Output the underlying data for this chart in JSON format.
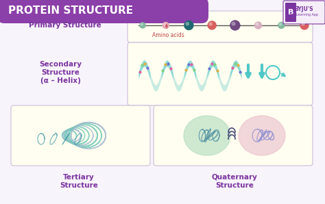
{
  "title": "PROTEIN STRUCTURE",
  "bg_color": "#f8f4fb",
  "header_bg": "#8b3fa8",
  "header_text_color": "#ffffff",
  "box_fill": "#fffef0",
  "box_edge": "#d4c8e0",
  "label_color": "#7b35a0",
  "primary_label": "Primary Structure",
  "primary_sublabel": "Amino acids",
  "secondary_label": "Secondary\nStructure\n(α – Helix)",
  "tertiary_label": "Tertiary\nStructure",
  "quaternary_label": "Quaternary\nStructure",
  "bead_colors": [
    "#82b8a0",
    "#e8a8b8",
    "#1e6870",
    "#d86060",
    "#704880",
    "#d8b0c0",
    "#82b8a0",
    "#d86060"
  ],
  "bead_sizes": [
    8,
    9,
    13,
    12,
    14,
    10,
    9,
    12
  ],
  "helix_color": "#50c8c8",
  "helix_dot_colors": [
    "#e060a0",
    "#80d080",
    "#e0b040",
    "#7070d0"
  ],
  "tertiary_color1": "#70c8b8",
  "tertiary_color2": "#a0b8d0",
  "quat_color1": "#a8d8b8",
  "quat_color2": "#e8b8c8",
  "quat_accent1": "#9090d0",
  "quat_line": "#202060",
  "label_fontsize": 7.5,
  "byju_color": "#7b35a0"
}
